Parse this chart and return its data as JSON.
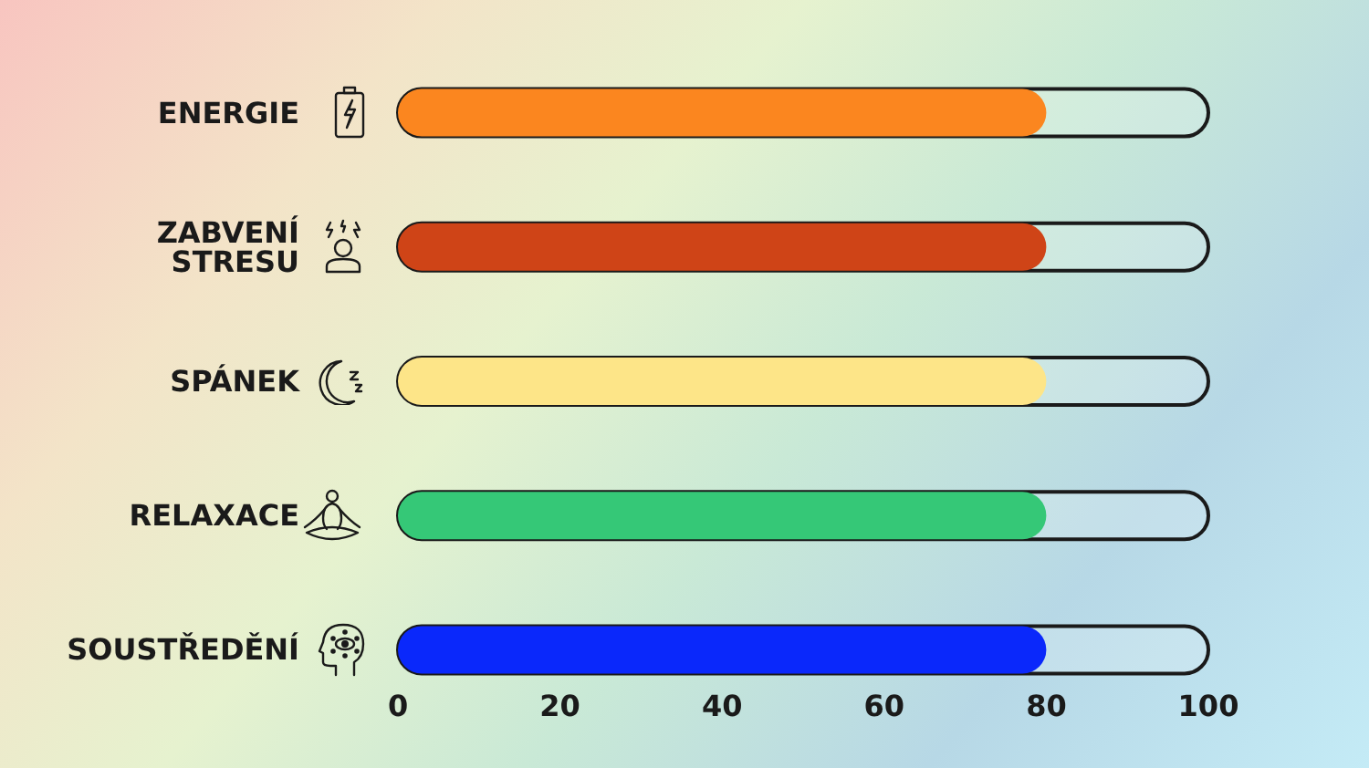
{
  "chart_data": {
    "type": "bar",
    "orientation": "horizontal",
    "categories": [
      "ENERGIE",
      "ZABVENÍ STRESU",
      "SPÁNEK",
      "RELAXACE",
      "SOUSTŘEDĚNÍ"
    ],
    "values": [
      80,
      80,
      80,
      80,
      80
    ],
    "colors": [
      "#fb861f",
      "#cf4417",
      "#fde588",
      "#35c877",
      "#0a28fb"
    ],
    "xlim": [
      0,
      100
    ],
    "xticks": [
      0,
      20,
      40,
      60,
      80,
      100
    ]
  }
}
